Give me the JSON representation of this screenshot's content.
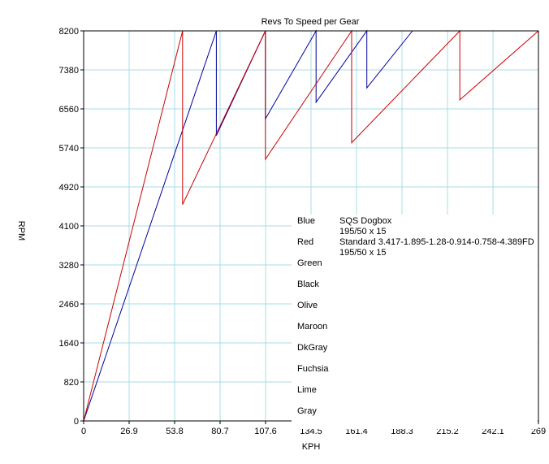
{
  "chart_data": {
    "type": "line",
    "title": "Revs To Speed per Gear",
    "xlabel": "KPH",
    "ylabel": "RPM",
    "xlim": [
      0,
      269
    ],
    "ylim": [
      0,
      8200
    ],
    "x_ticks": [
      "0",
      "26.9",
      "53.8",
      "80.7",
      "107.6",
      "134.5",
      "161.4",
      "188.3",
      "215.2",
      "242.1",
      "269"
    ],
    "y_ticks": [
      "0",
      "820",
      "1640",
      "2460",
      "3280",
      "4100",
      "4920",
      "5740",
      "6560",
      "7380",
      "8200"
    ],
    "grid": true,
    "legend": {
      "placement": "center-right",
      "entries": [
        {
          "name": "Blue",
          "description": [
            "SQS Dogbox",
            "195/50 x 15"
          ],
          "color": "#0000a0"
        },
        {
          "name": "Red",
          "description": [
            "Standard 3.417-1.895-1.28-0.914-0.758-4.389FD",
            "195/50 x 15"
          ],
          "color": "#cc0000"
        },
        {
          "name": "Green",
          "description": [],
          "color": "#00a000"
        },
        {
          "name": "Black",
          "description": [],
          "color": "#000000"
        },
        {
          "name": "Olive",
          "description": [],
          "color": "#808000"
        },
        {
          "name": "Maroon",
          "description": [],
          "color": "#800000"
        },
        {
          "name": "DkGray",
          "description": [],
          "color": "#808080"
        },
        {
          "name": "Fuchsia",
          "description": [],
          "color": "#ff00ff"
        },
        {
          "name": "Lime",
          "description": [],
          "color": "#00ff00"
        },
        {
          "name": "Gray",
          "description": [],
          "color": "#a0a0a0"
        }
      ]
    },
    "series": [
      {
        "name": "Blue",
        "color": "#0000a0",
        "points": [
          [
            0,
            0
          ],
          [
            78.5,
            8200
          ],
          [
            78.5,
            6000
          ],
          [
            107.5,
            8200
          ],
          [
            107.5,
            6350
          ],
          [
            137.5,
            8200
          ],
          [
            137.5,
            6700
          ],
          [
            167.5,
            8200
          ],
          [
            167.5,
            7000
          ],
          [
            194.5,
            8200
          ]
        ]
      },
      {
        "name": "Red",
        "color": "#cc0000",
        "points": [
          [
            0,
            0
          ],
          [
            58.5,
            8200
          ],
          [
            58.5,
            4550
          ],
          [
            107.5,
            8200
          ],
          [
            107.5,
            5500
          ],
          [
            158.5,
            8200
          ],
          [
            158.5,
            5850
          ],
          [
            222.5,
            8200
          ],
          [
            222.5,
            6750
          ],
          [
            269,
            8200
          ]
        ]
      }
    ]
  }
}
